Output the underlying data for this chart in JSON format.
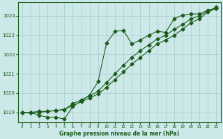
{
  "title": "Graphe pression niveau de la mer (hPa)",
  "bg_color": "#cde8e8",
  "line_color": "#1a5c1a",
  "grid_color": "#a8cccc",
  "x_min": -0.5,
  "x_max": 23.5,
  "y_min": 1018.5,
  "y_max": 1024.7,
  "yticks": [
    1019,
    1020,
    1021,
    1022,
    1023,
    1024
  ],
  "xticks": [
    0,
    1,
    2,
    3,
    4,
    5,
    6,
    7,
    8,
    9,
    10,
    11,
    12,
    13,
    14,
    15,
    16,
    17,
    18,
    19,
    20,
    21,
    22,
    23
  ],
  "line1_x": [
    0,
    1,
    2,
    3,
    4,
    5,
    6,
    7,
    8,
    9,
    10,
    11,
    12,
    13,
    14,
    15,
    16,
    17,
    18,
    19,
    20,
    21,
    22,
    23
  ],
  "line1_y": [
    1019.0,
    1019.0,
    1018.85,
    1018.75,
    1018.75,
    1018.65,
    1019.3,
    1019.6,
    1019.9,
    1020.6,
    1022.6,
    1023.2,
    1023.25,
    1022.55,
    1022.75,
    1023.0,
    1023.2,
    1023.15,
    1023.85,
    1024.05,
    1024.1,
    1024.1,
    1024.3,
    1024.4
  ],
  "line2_x": [
    0,
    1,
    2,
    3,
    4,
    5,
    6,
    7,
    8,
    9,
    10,
    11,
    12,
    13,
    14,
    15,
    16,
    17,
    18,
    19,
    20,
    21,
    22,
    23
  ],
  "line2_y": [
    1019.0,
    1019.0,
    1019.0,
    1019.05,
    1019.1,
    1019.15,
    1019.35,
    1019.55,
    1019.75,
    1019.95,
    1020.3,
    1020.7,
    1021.1,
    1021.5,
    1021.85,
    1022.2,
    1022.55,
    1022.75,
    1023.0,
    1023.3,
    1023.65,
    1023.85,
    1024.2,
    1024.4
  ],
  "line3_x": [
    0,
    1,
    2,
    3,
    4,
    5,
    6,
    7,
    8,
    9,
    10,
    11,
    12,
    13,
    14,
    15,
    16,
    17,
    18,
    19,
    20,
    21,
    22,
    23
  ],
  "line3_y": [
    1019.0,
    1019.0,
    1019.05,
    1019.05,
    1019.1,
    1019.15,
    1019.45,
    1019.65,
    1019.85,
    1020.1,
    1020.55,
    1021.0,
    1021.45,
    1021.85,
    1022.2,
    1022.5,
    1022.8,
    1023.0,
    1023.3,
    1023.55,
    1023.85,
    1024.0,
    1024.25,
    1024.45
  ]
}
